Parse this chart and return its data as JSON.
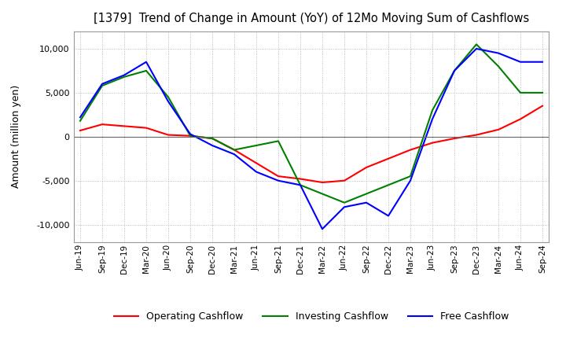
{
  "title": "[1379]  Trend of Change in Amount (YoY) of 12Mo Moving Sum of Cashflows",
  "ylabel": "Amount (million yen)",
  "ylim": [
    -12000,
    12000
  ],
  "yticks": [
    -10000,
    -5000,
    0,
    5000,
    10000
  ],
  "x_labels": [
    "Jun-19",
    "Sep-19",
    "Dec-19",
    "Mar-20",
    "Jun-20",
    "Sep-20",
    "Dec-20",
    "Mar-21",
    "Jun-21",
    "Sep-21",
    "Dec-21",
    "Mar-22",
    "Jun-22",
    "Sep-22",
    "Dec-22",
    "Mar-23",
    "Jun-23",
    "Sep-23",
    "Dec-23",
    "Mar-24",
    "Jun-24",
    "Sep-24"
  ],
  "operating": [
    700,
    1400,
    1200,
    1000,
    200,
    100,
    -200,
    -1500,
    -3000,
    -4500,
    -4800,
    -5200,
    -5000,
    -3500,
    -2500,
    -1500,
    -700,
    -200,
    200,
    800,
    2000,
    3500
  ],
  "investing": [
    1800,
    5800,
    6800,
    7500,
    4500,
    100,
    -200,
    -1500,
    -1000,
    -500,
    -5500,
    -6500,
    -7500,
    -6500,
    -5500,
    -4500,
    3000,
    7500,
    10500,
    8000,
    5000,
    5000
  ],
  "free": [
    2200,
    6000,
    7000,
    8500,
    4000,
    300,
    -1000,
    -2000,
    -4000,
    -5000,
    -5500,
    -10500,
    -8000,
    -7500,
    -9000,
    -5000,
    2000,
    7500,
    10000,
    9500,
    8500,
    8500
  ],
  "op_color": "#ff0000",
  "inv_color": "#008000",
  "free_color": "#0000ff",
  "background_color": "#ffffff",
  "grid_color": "#aaaaaa"
}
